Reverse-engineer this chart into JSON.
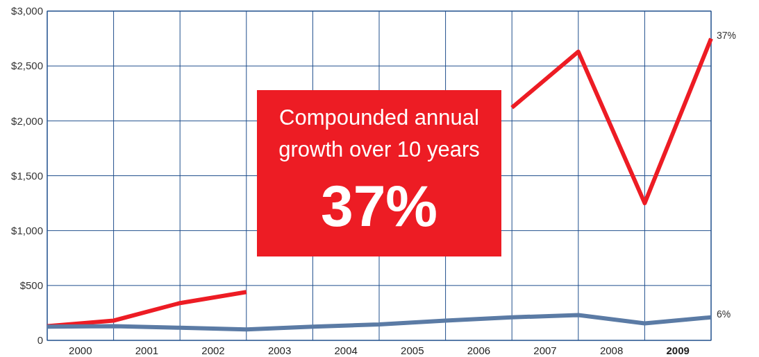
{
  "chart_data": {
    "type": "line",
    "x": [
      2000,
      2001,
      2002,
      2003,
      2004,
      2005,
      2006,
      2007,
      2008,
      2009,
      2010
    ],
    "series": [
      {
        "color": "#ed1c24",
        "values": [
          130,
          180,
          340,
          440,
          null,
          null,
          null,
          2120,
          2630,
          1250,
          2750
        ]
      },
      {
        "color": "#5b7ba5",
        "values": [
          125,
          130,
          115,
          100,
          125,
          145,
          180,
          210,
          230,
          155,
          210
        ]
      }
    ],
    "xlim": [
      2000,
      2010
    ],
    "xticks": [
      {
        "value": 2000,
        "label": null
      },
      {
        "value": 2000.5,
        "label": "2000"
      },
      {
        "value": 2001,
        "label": null
      },
      {
        "value": 2001.5,
        "label": "2001"
      },
      {
        "value": 2002,
        "label": null
      },
      {
        "value": 2002.5,
        "label": "2002"
      },
      {
        "value": 2003,
        "label": null
      },
      {
        "value": 2003.5,
        "label": "2003"
      },
      {
        "value": 2004,
        "label": null
      },
      {
        "value": 2004.5,
        "label": "2004"
      },
      {
        "value": 2005,
        "label": null
      },
      {
        "value": 2005.5,
        "label": "2005"
      },
      {
        "value": 2006,
        "label": null
      },
      {
        "value": 2006.5,
        "label": "2006"
      },
      {
        "value": 2007,
        "label": null
      },
      {
        "value": 2007.5,
        "label": "2007"
      },
      {
        "value": 2008,
        "label": null
      },
      {
        "value": 2008.5,
        "label": "2008"
      },
      {
        "value": 2009,
        "label": null
      },
      {
        "value": 2009.5,
        "label": "2009"
      },
      {
        "value": 2010,
        "label": null
      }
    ],
    "ylim": [
      0,
      3000
    ],
    "yticks": [
      {
        "value": 0,
        "label": "0"
      },
      {
        "value": 500,
        "label": "$500"
      },
      {
        "value": 1000,
        "label": "$1,000"
      },
      {
        "value": 1500,
        "label": "$1,500"
      },
      {
        "value": 2000,
        "label": "$2,000"
      },
      {
        "value": 2500,
        "label": "$2,500"
      },
      {
        "value": 3000,
        "label": "$3,000"
      }
    ],
    "grid": true,
    "marker": "none",
    "line_style": "solid",
    "annotations": [
      {
        "text": "37%",
        "x": 2010,
        "y": 2750
      },
      {
        "text": "6%",
        "x": 2010,
        "y": 210
      },
      "Compounded annual growth over 10 years",
      "37%"
    ]
  }
}
